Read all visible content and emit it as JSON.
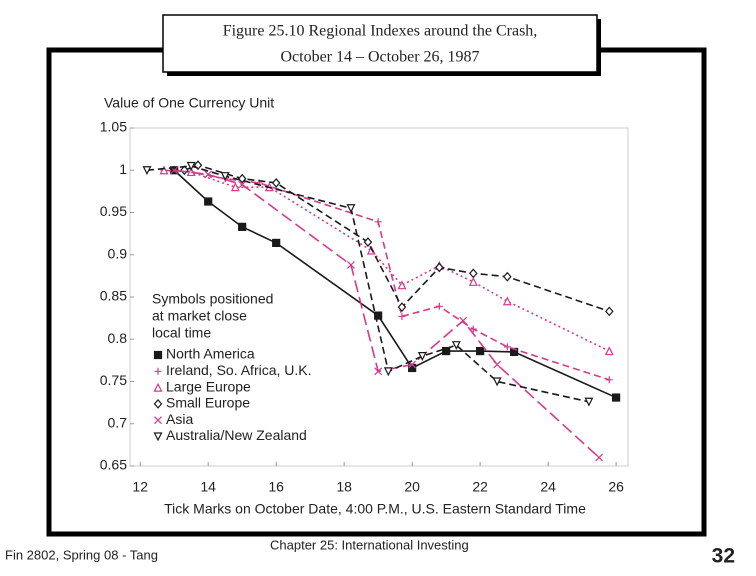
{
  "chart_data": {
    "type": "line",
    "title": [
      "Figure 25.10 Regional Indexes around the Crash,",
      "October 14 – October 26, 1987"
    ],
    "y_label": "Value of One Currency Unit",
    "x_label": "Tick Marks on October Date, 4:00 P.M., U.S. Eastern Standard Time",
    "annotation": [
      "Symbols positioned",
      "at market close",
      "local time"
    ],
    "xlim": [
      11.7,
      26.35
    ],
    "ylim": [
      0.65,
      1.05
    ],
    "xticks": [
      12,
      14,
      16,
      18,
      20,
      22,
      24,
      26
    ],
    "yticks": [
      1.05,
      1,
      0.95,
      0.9,
      0.85,
      0.8,
      0.75,
      0.7,
      0.65
    ],
    "series": [
      {
        "name": "North America",
        "color": "#1a1a1a",
        "dash": "solid",
        "marker": "square",
        "x": [
          13,
          14,
          15,
          16,
          19,
          20,
          21,
          22,
          23,
          26
        ],
        "values": [
          1.0,
          0.963,
          0.933,
          0.914,
          0.828,
          0.766,
          0.786,
          0.786,
          0.785,
          0.731
        ]
      },
      {
        "name": "Ireland, So. Africa, U.K.",
        "color": "#d63a8c",
        "dash": "dash",
        "marker": "plus",
        "x": [
          12.7,
          13.5,
          14.5,
          15.5,
          19,
          19.7,
          20.8,
          21.8,
          22.8,
          25.8
        ],
        "values": [
          1.0,
          0.998,
          0.99,
          0.985,
          0.939,
          0.827,
          0.839,
          0.812,
          0.791,
          0.752
        ]
      },
      {
        "name": "Large Europe",
        "color": "#d63a8c",
        "dash": "dot",
        "marker": "triangle",
        "x": [
          12.7,
          13.5,
          14.8,
          15.8,
          18.8,
          19.7,
          20.8,
          21.8,
          22.8,
          25.8
        ],
        "values": [
          1.0,
          0.998,
          0.98,
          0.98,
          0.905,
          0.864,
          0.887,
          0.868,
          0.845,
          0.786
        ]
      },
      {
        "name": "Small Europe",
        "color": "#1a1a1a",
        "dash": "dash",
        "marker": "diamond",
        "x": [
          13.3,
          13.7,
          15,
          16,
          18.7,
          19.7,
          20.8,
          21.8,
          22.8,
          25.8
        ],
        "values": [
          1.0,
          1.006,
          0.99,
          0.985,
          0.915,
          0.838,
          0.885,
          0.878,
          0.874,
          0.833
        ]
      },
      {
        "name": "Asia",
        "color": "#d63a8c",
        "dash": "longdash",
        "marker": "x",
        "x": [
          13,
          14,
          15,
          18.2,
          19,
          20,
          21.5,
          22.5,
          25.5
        ],
        "values": [
          1.0,
          0.995,
          0.983,
          0.888,
          0.762,
          0.77,
          0.822,
          0.77,
          0.66
        ]
      },
      {
        "name": "Australia/New Zealand",
        "color": "#1a1a1a",
        "dash": "dash",
        "marker": "triangle-down",
        "x": [
          12.2,
          13.5,
          14.5,
          18.2,
          19.3,
          20.3,
          21.3,
          22.5,
          25.2
        ],
        "values": [
          1.0,
          1.005,
          0.993,
          0.955,
          0.762,
          0.78,
          0.793,
          0.75,
          0.726
        ]
      }
    ]
  },
  "footer": {
    "left": "Fin 2802, Spring 08 - Tang",
    "center": "Chapter 25: International Investing",
    "page": "32"
  }
}
